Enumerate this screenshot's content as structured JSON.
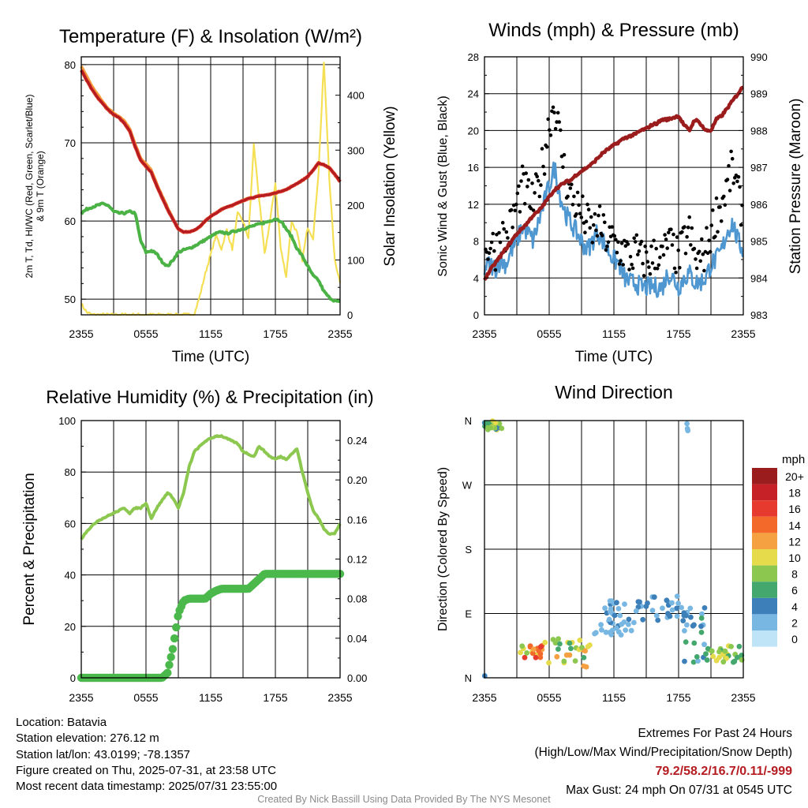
{
  "x_tick_labels": [
    "2355",
    "0555",
    "1155",
    "1755",
    "2355"
  ],
  "panels": {
    "temperature": {
      "title": "Temperature (F) & Insolation (W/m²)",
      "ylabel_left_line1": "2m T, Td, HI/WC (Red, Green, Scarlet/Blue)",
      "ylabel_left_line2": "& 9m T (Orange)",
      "ylabel_right": "Solar Insolation (Yellow)",
      "xlabel": "Time (UTC)"
    },
    "winds": {
      "title": "Winds (mph) & Pressure (mb)",
      "ylabel_left": "Sonic Wind & Gust (Blue, Black)",
      "ylabel_right": "Station Pressure (Maroon)",
      "xlabel": "Time (UTC)"
    },
    "humidity": {
      "title": "Relative Humidity (%) & Precipitation (in)",
      "ylabel_left": "Percent & Precipitation"
    },
    "direction": {
      "title": "Wind Direction",
      "ylabel_left": "Direction (Colored By Speed)",
      "colorbar_title": "mph",
      "colorbar_labels": [
        "20+",
        "18",
        "16",
        "14",
        "12",
        "10",
        "8",
        "6",
        "4",
        "2",
        "0"
      ]
    }
  },
  "footer": {
    "location": "Location: Batavia",
    "elevation": "Station elevation: 276.12 m",
    "latlon": "Station lat/lon: 43.0199; -78.1357",
    "created": "Figure created on Thu, 2025-07-31, at 23:58 UTC",
    "recent": "Most recent data timestamp: 2025/07/31 23:55:00",
    "extremes_title": "Extremes For Past 24 Hours",
    "extremes_legend": "(High/Low/Max Wind/Precipitation/Snow Depth)",
    "extremes_values": "79.2/58.2/16.7/0.11/-999",
    "max_gust": "Max Gust: 24 mph On 07/31 at 0545 UTC",
    "credit": "Created By Nick Bassill Using Data Provided By The NYS Mesonet"
  },
  "colors": {
    "temperature": "#b51c22",
    "heat_index": "#e0432b",
    "temp_9m": "#f5a142",
    "dewpoint": "#4bb245",
    "insolation": "#f5e055",
    "wind": "#4f97d0",
    "gust": "#000000",
    "pressure": "#9b1c1c",
    "rh": "#8cc84f",
    "precip": "#4bb84b",
    "colorbar": [
      "#9b1c1c",
      "#c62127",
      "#e63a2e",
      "#f2692a",
      "#f5a142",
      "#e5db4b",
      "#8cc84f",
      "#44a86e",
      "#3d7fb8",
      "#79b7e3",
      "#bfe3f7"
    ]
  },
  "chart_data": [
    {
      "type": "line",
      "title": "Temperature (F) & Insolation (W/m²)",
      "xlabel": "Time (UTC)",
      "ylabel": "2m T, Td, HI/WC (Red, Green, Scarlet/Blue) & 9m T (Orange)",
      "y2label": "Solar Insolation (Yellow)",
      "x_hours": [
        0,
        0.5,
        1,
        1.5,
        2,
        2.5,
        3,
        3.5,
        4,
        4.5,
        5,
        5.5,
        6,
        6.5,
        7,
        7.5,
        8,
        8.5,
        9,
        9.5,
        10,
        10.5,
        11,
        11.5,
        12,
        12.5,
        13,
        13.5,
        14,
        14.5,
        15,
        15.5,
        16,
        16.5,
        17,
        17.5,
        18,
        18.5,
        19,
        19.5,
        20,
        20.5,
        21,
        21.5,
        22,
        22.5,
        23,
        23.5,
        24
      ],
      "xticks": [
        "2355",
        "0555",
        "1155",
        "1755",
        "2355"
      ],
      "ylim": [
        48,
        81
      ],
      "y2lim": [
        0,
        470
      ],
      "grid": true,
      "series": [
        {
          "name": "2m T",
          "axis": "left",
          "values": [
            79.3,
            78.0,
            76.8,
            75.8,
            75.0,
            74.2,
            73.6,
            73.2,
            72.5,
            71.5,
            69.5,
            67.8,
            67.0,
            66.2,
            64.5,
            63.0,
            61.5,
            60.2,
            59.0,
            58.6,
            58.6,
            58.8,
            59.3,
            60.0,
            60.6,
            61.0,
            61.5,
            61.8,
            62.0,
            62.3,
            62.6,
            62.9,
            63.0,
            63.2,
            63.3,
            63.4,
            63.6,
            63.8,
            64.0,
            64.4,
            64.8,
            65.2,
            65.7,
            66.5,
            67.4,
            67.2,
            66.8,
            66.0,
            65.0
          ]
        },
        {
          "name": "Td",
          "axis": "left",
          "values": [
            61.0,
            61.5,
            61.8,
            62.0,
            62.2,
            62.0,
            61.2,
            61.0,
            61.0,
            61.2,
            61.0,
            57.5,
            56.0,
            56.2,
            55.8,
            54.8,
            54.2,
            55.0,
            56.0,
            56.3,
            56.5,
            56.8,
            57.2,
            57.6,
            58.0,
            58.4,
            58.6,
            58.4,
            58.6,
            58.8,
            59.0,
            59.2,
            59.4,
            59.6,
            59.8,
            60.0,
            60.3,
            60.0,
            59.0,
            58.0,
            56.5,
            55.5,
            54.2,
            53.0,
            52.4,
            51.0,
            50.2,
            49.8,
            49.6
          ]
        },
        {
          "name": "9m T",
          "axis": "left",
          "values": [
            79.8,
            78.5,
            77.2,
            76.2,
            75.2,
            74.4,
            73.8,
            73.4,
            72.8,
            71.8,
            69.8,
            68.0,
            67.3,
            66.5,
            64.7,
            63.2,
            61.7,
            60.3,
            59.0,
            58.6,
            58.6,
            58.8,
            59.3,
            60.0,
            60.6,
            61.0,
            61.5,
            61.8,
            62.0,
            62.3,
            62.6,
            62.9,
            63.0,
            63.2,
            63.3,
            63.4,
            63.6,
            63.8,
            64.0,
            64.4,
            64.8,
            65.2,
            65.7,
            66.5,
            67.4,
            67.2,
            66.8,
            66.0,
            65.0
          ]
        },
        {
          "name": "Solar Insolation",
          "axis": "right",
          "values": [
            20,
            5,
            0,
            0,
            0,
            0,
            0,
            0,
            0,
            0,
            0,
            0,
            0,
            0,
            0,
            0,
            0,
            0,
            0,
            0,
            0,
            2,
            35,
            75,
            110,
            145,
            120,
            155,
            120,
            185,
            170,
            140,
            310,
            210,
            110,
            170,
            240,
            120,
            70,
            170,
            150,
            100,
            160,
            140,
            260,
            460,
            250,
            100,
            60
          ]
        }
      ]
    },
    {
      "type": "line",
      "title": "Winds (mph) & Pressure (mb)",
      "xlabel": "Time (UTC)",
      "ylabel": "Sonic Wind & Gust (Blue, Black)",
      "y2label": "Station Pressure (Maroon)",
      "x_hours": [
        0,
        0.5,
        1,
        1.5,
        2,
        2.5,
        3,
        3.5,
        4,
        4.5,
        5,
        5.5,
        6,
        6.5,
        7,
        7.5,
        8,
        8.5,
        9,
        9.5,
        10,
        10.5,
        11,
        11.5,
        12,
        12.5,
        13,
        13.5,
        14,
        14.5,
        15,
        15.5,
        16,
        16.5,
        17,
        17.5,
        18,
        18.5,
        19,
        19.5,
        20,
        20.5,
        21,
        21.5,
        22,
        22.5,
        23,
        23.5,
        24
      ],
      "xticks": [
        "2355",
        "0555",
        "1155",
        "1755",
        "2355"
      ],
      "ylim": [
        0,
        28
      ],
      "y2lim": [
        983,
        990
      ],
      "grid": true,
      "series": [
        {
          "name": "Sonic Wind",
          "axis": "left",
          "values": [
            5,
            5.5,
            5,
            6,
            5.5,
            7,
            8,
            9.5,
            9,
            8,
            10,
            12,
            14,
            16,
            13,
            11,
            10,
            9,
            8,
            7,
            8,
            9,
            8,
            7,
            6,
            5.5,
            4,
            3.5,
            3.5,
            3,
            3,
            3,
            3,
            3,
            4.5,
            4,
            3,
            4,
            4.5,
            3.5,
            3.5,
            4,
            5.5,
            6,
            7,
            9,
            10,
            8,
            7
          ]
        },
        {
          "name": "Gust",
          "axis": "left",
          "values": [
            6,
            8,
            7,
            9,
            8,
            10,
            12,
            14,
            13,
            12,
            14,
            17,
            21,
            23,
            19,
            15,
            13,
            12,
            11,
            10,
            9,
            10,
            9,
            8,
            8,
            7,
            7,
            6,
            7,
            6,
            6,
            6,
            7,
            6,
            8,
            7,
            6,
            8,
            9,
            6,
            6,
            7,
            9,
            11,
            12,
            14,
            16,
            13,
            11
          ]
        },
        {
          "name": "Station Pressure",
          "axis": "right",
          "values": [
            983.95,
            984.2,
            984.4,
            984.6,
            984.8,
            985.0,
            985.2,
            985.35,
            985.5,
            985.7,
            985.8,
            986.0,
            986.2,
            986.4,
            986.5,
            986.6,
            986.65,
            986.8,
            986.9,
            987.0,
            987.1,
            987.25,
            987.4,
            987.5,
            987.6,
            987.7,
            987.8,
            987.85,
            987.9,
            988.0,
            988.05,
            988.15,
            988.2,
            988.3,
            988.3,
            988.35,
            988.4,
            988.15,
            988.0,
            988.3,
            988.2,
            988.0,
            988.0,
            988.3,
            988.4,
            988.6,
            988.8,
            989.0,
            989.2
          ]
        }
      ]
    },
    {
      "type": "line",
      "title": "Relative Humidity (%) & Precipitation (in)",
      "ylabel": "Percent & Precipitation",
      "x_hours": [
        0,
        0.5,
        1,
        1.5,
        2,
        2.5,
        3,
        3.5,
        4,
        4.5,
        5,
        5.5,
        6,
        6.5,
        7,
        7.5,
        8,
        8.5,
        9,
        9.5,
        10,
        10.5,
        11,
        11.5,
        12,
        12.5,
        13,
        13.5,
        14,
        14.5,
        15,
        15.5,
        16,
        16.5,
        17,
        17.5,
        18,
        18.5,
        19,
        19.5,
        20,
        20.5,
        21,
        21.5,
        22,
        22.5,
        23,
        23.5,
        24
      ],
      "xticks": [
        "2355",
        "0555",
        "1155",
        "1755",
        "2355"
      ],
      "ylim": [
        0,
        100
      ],
      "y2lim": [
        0,
        0.26
      ],
      "grid": true,
      "series": [
        {
          "name": "Relative Humidity",
          "axis": "left",
          "values": [
            54,
            57,
            59,
            61,
            62,
            63,
            64,
            65,
            66,
            64,
            66,
            66,
            68,
            62,
            66,
            69,
            72,
            70,
            66,
            72,
            82,
            88,
            90,
            92,
            93,
            94,
            94,
            93,
            92,
            91,
            88,
            87,
            86,
            90,
            88,
            86,
            85,
            86,
            85,
            87,
            89,
            80,
            72,
            65,
            62,
            58,
            56,
            56,
            60
          ]
        },
        {
          "name": "Precipitation",
          "axis": "right",
          "values": [
            0,
            0,
            0,
            0,
            0,
            0,
            0,
            0,
            0,
            0,
            0,
            0,
            0,
            0,
            0,
            0,
            0.005,
            0.03,
            0.065,
            0.078,
            0.08,
            0.08,
            0.08,
            0.08,
            0.085,
            0.088,
            0.09,
            0.09,
            0.09,
            0.09,
            0.09,
            0.09,
            0.095,
            0.1,
            0.105,
            0.105,
            0.105,
            0.105,
            0.105,
            0.105,
            0.105,
            0.105,
            0.105,
            0.105,
            0.105,
            0.105,
            0.105,
            0.105,
            0.105
          ]
        }
      ]
    },
    {
      "type": "scatter",
      "title": "Wind Direction",
      "ylabel": "Direction (Colored By Speed)",
      "xticks": [
        "2355",
        "0555",
        "1155",
        "1755",
        "2355"
      ],
      "yticks": [
        "N",
        "E",
        "S",
        "W",
        "N"
      ],
      "ylim": [
        0,
        360
      ],
      "grid": true,
      "color_scale": {
        "title": "mph",
        "labels": [
          "20+",
          "18",
          "16",
          "14",
          "12",
          "10",
          "8",
          "6",
          "4",
          "2",
          "0"
        ]
      },
      "clusters": [
        {
          "x_hours": [
            0,
            1.6
          ],
          "dir_deg": [
            346,
            360
          ],
          "speed_mph": [
            4,
            10
          ],
          "count": 22
        },
        {
          "x_hours": [
            3.2,
            5.5
          ],
          "dir_deg": [
            25,
            45
          ],
          "speed_mph": [
            8,
            17
          ],
          "count": 20
        },
        {
          "x_hours": [
            5.5,
            9.8
          ],
          "dir_deg": [
            15,
            55
          ],
          "speed_mph": [
            6,
            12
          ],
          "count": 28
        },
        {
          "x_hours": [
            10.2,
            14.0
          ],
          "dir_deg": [
            60,
            108
          ],
          "speed_mph": [
            1,
            4
          ],
          "count": 38
        },
        {
          "x_hours": [
            14.0,
            18.8
          ],
          "dir_deg": [
            80,
            115
          ],
          "speed_mph": [
            1,
            5
          ],
          "count": 30
        },
        {
          "x_hours": [
            18.5,
            20.5
          ],
          "dir_deg": [
            20,
            100
          ],
          "speed_mph": [
            1,
            6
          ],
          "count": 22
        },
        {
          "x_hours": [
            20.5,
            24.0
          ],
          "dir_deg": [
            20,
            45
          ],
          "speed_mph": [
            5,
            10
          ],
          "count": 28
        },
        {
          "x_hours": [
            18.5,
            19.0
          ],
          "dir_deg": [
            345,
            360
          ],
          "speed_mph": [
            1,
            2
          ],
          "count": 3
        },
        {
          "x_hours": [
            0,
            0.1
          ],
          "dir_deg": [
            0,
            3
          ],
          "speed_mph": [
            3,
            4
          ],
          "count": 1
        }
      ]
    }
  ]
}
